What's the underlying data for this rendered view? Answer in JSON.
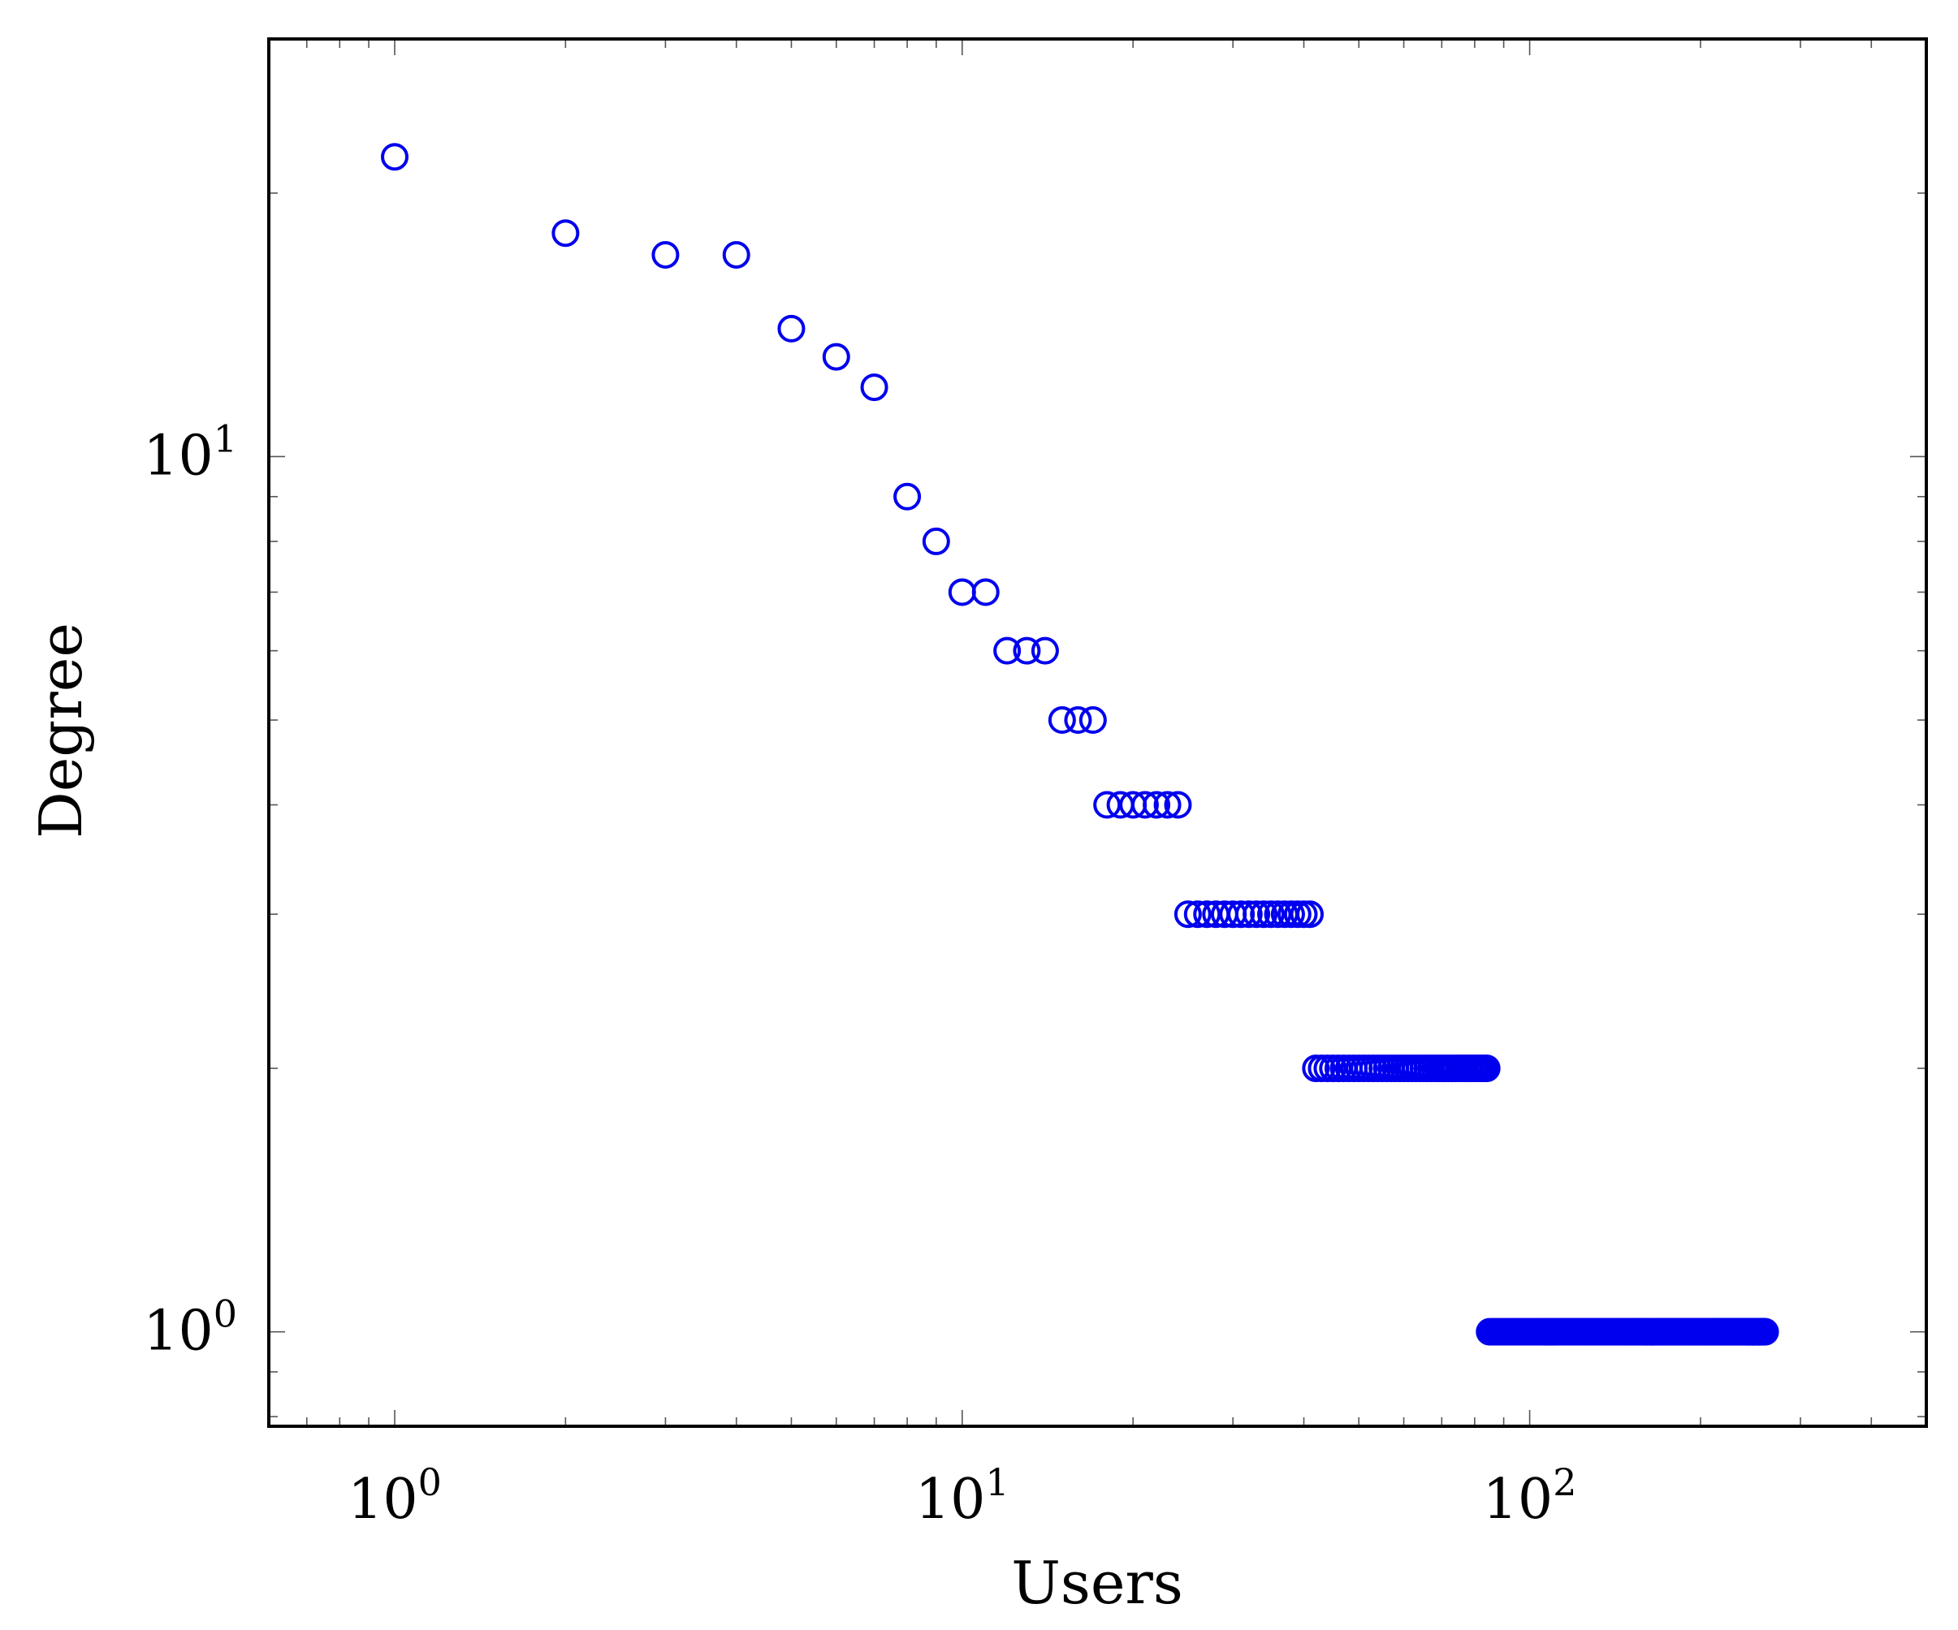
{
  "chart_data": {
    "type": "scatter",
    "title": "",
    "xlabel": "Users",
    "ylabel": "Degree",
    "x_scale": "log",
    "y_scale": "log",
    "xlim": [
      0.6,
      500
    ],
    "ylim": [
      0.78,
      30
    ],
    "grid": false,
    "legend": "none",
    "marker": "open-circle",
    "color": "#0000ee",
    "x_ticks": [
      {
        "base": "10",
        "exp": "0",
        "value": 1
      },
      {
        "base": "10",
        "exp": "1",
        "value": 10
      },
      {
        "base": "10",
        "exp": "2",
        "value": 100
      }
    ],
    "y_ticks": [
      {
        "base": "10",
        "exp": "0",
        "value": 1
      },
      {
        "base": "10",
        "exp": "1",
        "value": 10
      }
    ],
    "series": [
      {
        "ranks": [
          1,
          2,
          3,
          4,
          5,
          6,
          7,
          8,
          9,
          10,
          11,
          12,
          13,
          14,
          15,
          16,
          17,
          18,
          19,
          20,
          21,
          22,
          23,
          24
        ],
        "values": [
          22,
          18,
          17,
          17,
          14,
          13,
          12,
          9,
          8,
          7,
          7,
          6,
          6,
          6,
          5,
          5,
          5,
          4,
          4,
          4,
          4,
          4,
          4,
          4
        ]
      },
      {
        "x_from": 25,
        "x_to": 41,
        "y": 3
      },
      {
        "x_from": 42,
        "x_to": 84,
        "y": 2
      },
      {
        "x_from": 85,
        "x_to": 260,
        "y": 1
      }
    ]
  }
}
